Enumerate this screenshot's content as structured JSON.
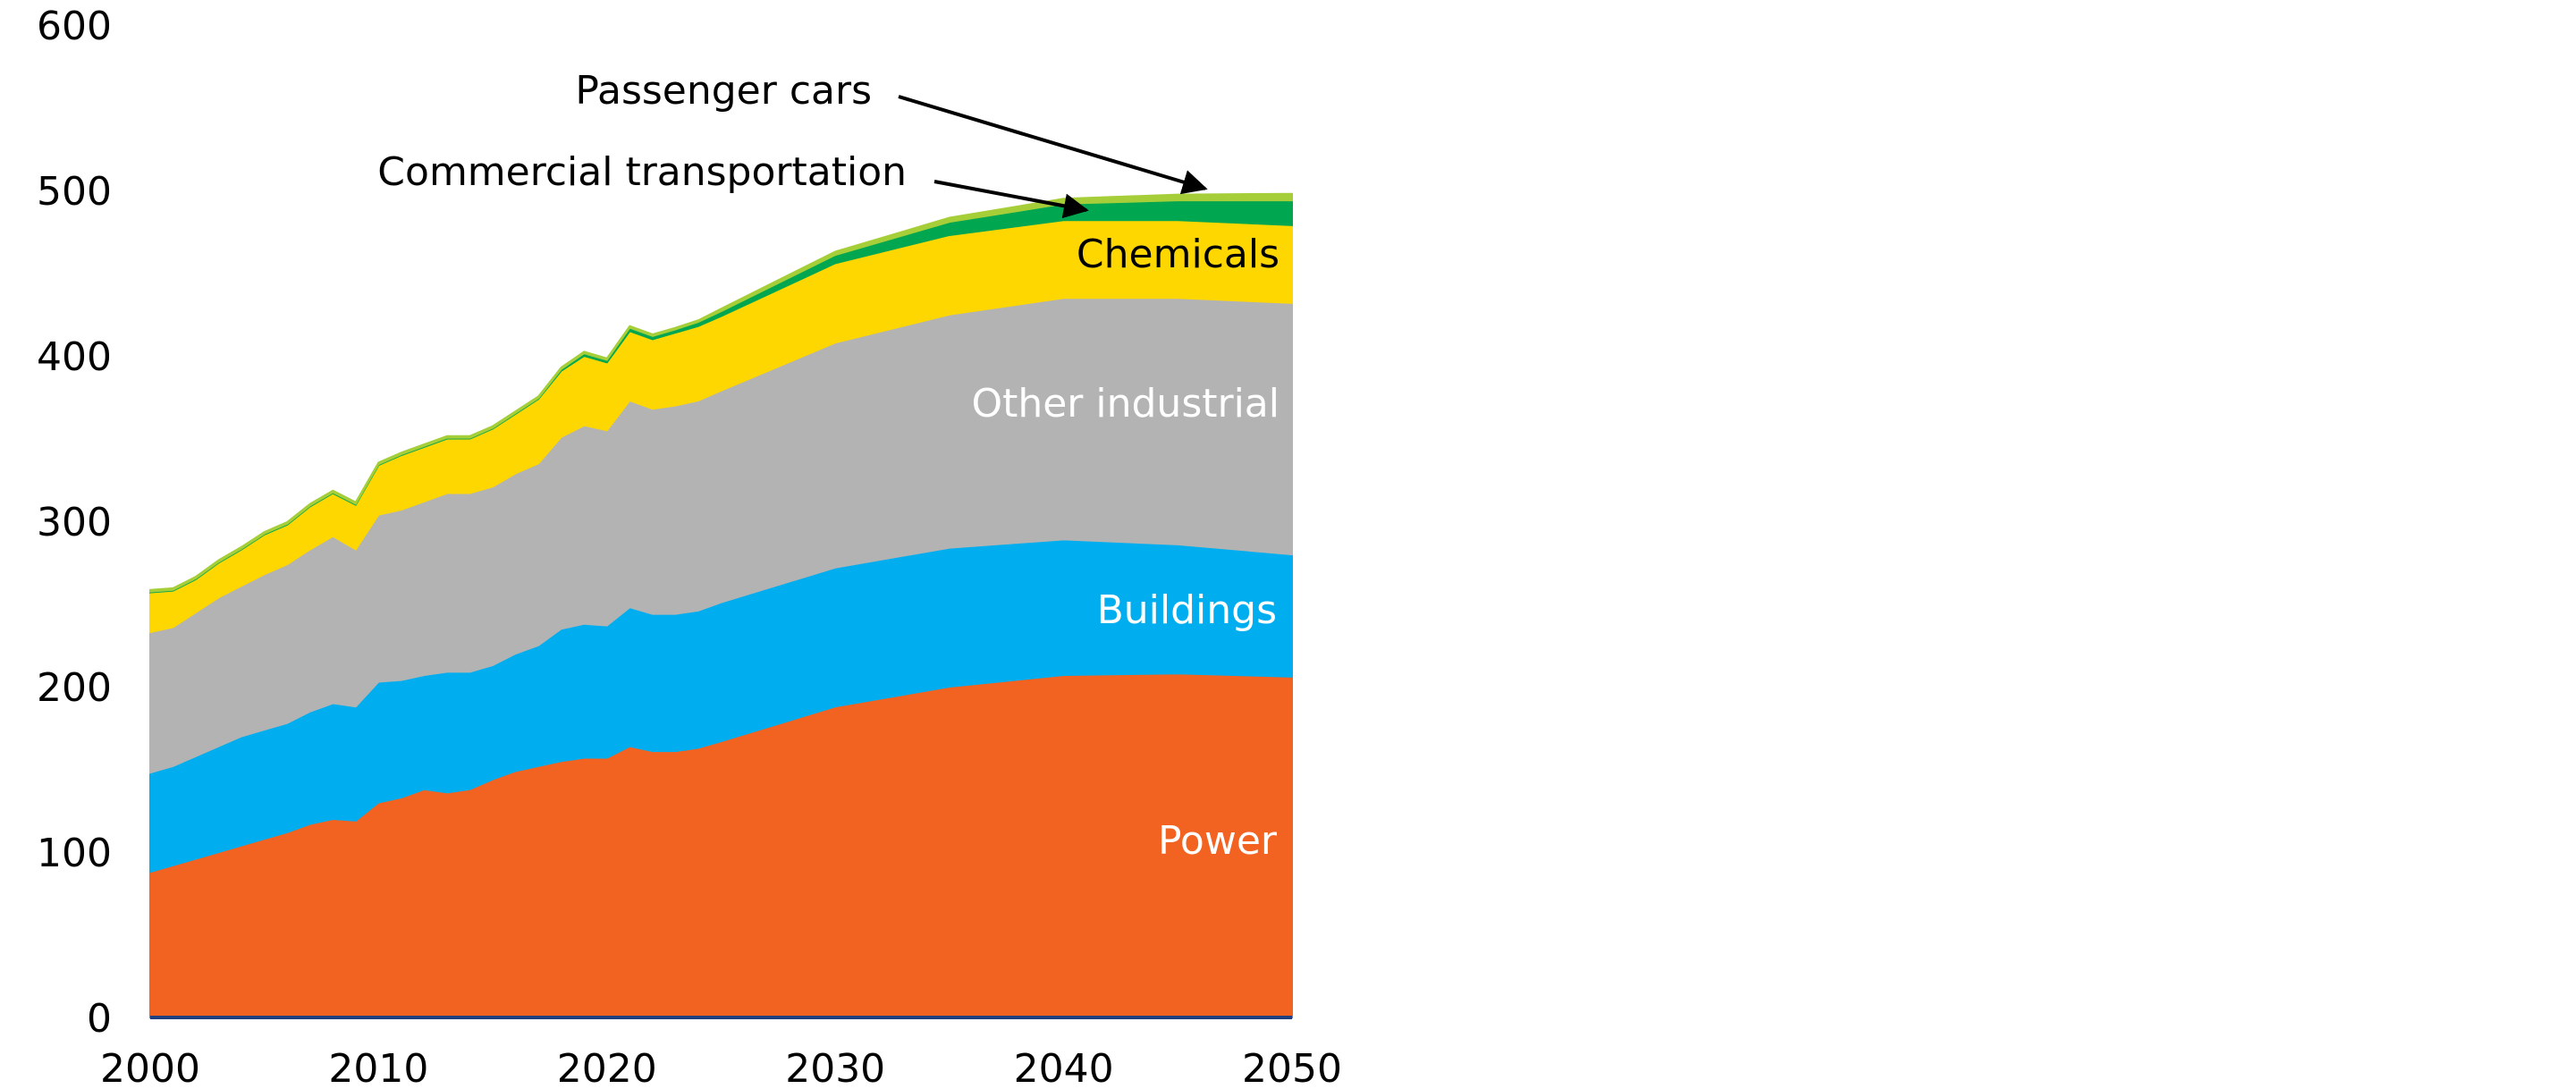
{
  "chart_data": {
    "type": "area",
    "stacked": true,
    "title": "",
    "xlabel": "",
    "ylabel": "",
    "xlim": [
      2000,
      2050
    ],
    "ylim": [
      0,
      600
    ],
    "x_ticks": [
      "2000",
      "2010",
      "2020",
      "2030",
      "2040",
      "2050"
    ],
    "y_ticks": [
      "0",
      "100",
      "200",
      "300",
      "400",
      "500",
      "600"
    ],
    "grid": false,
    "legend": "none (direct labels)",
    "x": [
      2000,
      2001,
      2002,
      2003,
      2004,
      2005,
      2006,
      2007,
      2008,
      2009,
      2010,
      2011,
      2012,
      2013,
      2014,
      2015,
      2016,
      2017,
      2018,
      2019,
      2020,
      2021,
      2022,
      2023,
      2024,
      2025,
      2030,
      2035,
      2040,
      2045,
      2050
    ],
    "series": [
      {
        "name": "Power",
        "color": "#f26322",
        "label_color": "#ffffff",
        "values": [
          88,
          92,
          96,
          100,
          104,
          108,
          112,
          117,
          120,
          119,
          130,
          133,
          138,
          136,
          138,
          144,
          149,
          152,
          155,
          157,
          157,
          164,
          161,
          161,
          163,
          167,
          188,
          200,
          207,
          208,
          206
        ]
      },
      {
        "name": "Buildings",
        "color": "#00aeef",
        "label_color": "#ffffff",
        "values": [
          60,
          60,
          62,
          64,
          66,
          66,
          66,
          68,
          70,
          69,
          73,
          71,
          69,
          73,
          71,
          69,
          71,
          73,
          80,
          81,
          80,
          84,
          83,
          83,
          83,
          84,
          84,
          84,
          82,
          78,
          74
        ]
      },
      {
        "name": "Other industrial",
        "color": "#b3b3b3",
        "label_color": "#ffffff",
        "values": [
          85,
          84,
          87,
          90,
          91,
          94,
          96,
          98,
          101,
          95,
          101,
          103,
          105,
          108,
          108,
          108,
          109,
          110,
          116,
          120,
          118,
          125,
          124,
          126,
          127,
          128,
          136,
          141,
          146,
          149,
          152
        ]
      },
      {
        "name": "Chemicals",
        "color": "#ffd700",
        "label_color": "#000000",
        "values": [
          24,
          22,
          20,
          21,
          22,
          24,
          24,
          26,
          26,
          27,
          30,
          33,
          33,
          33,
          33,
          35,
          36,
          39,
          40,
          42,
          41,
          42,
          42,
          44,
          45,
          45,
          48,
          48,
          47,
          47,
          47
        ]
      },
      {
        "name": "Commercial transportation",
        "color": "#00a650",
        "label_color": "#000000",
        "values": [
          0.5,
          0.5,
          0.5,
          0.5,
          0.5,
          0.5,
          0.5,
          0.5,
          0.5,
          0.5,
          0.5,
          0.5,
          0.5,
          0.5,
          0.5,
          0.5,
          0.5,
          0.5,
          1,
          1.5,
          1.5,
          2,
          2,
          2,
          2.5,
          3,
          5,
          8,
          10,
          12,
          15
        ]
      },
      {
        "name": "Passenger cars",
        "color": "#a6ce39",
        "label_color": "#000000",
        "values": [
          1,
          1,
          1,
          1,
          1,
          1,
          1,
          1,
          1,
          1,
          1,
          1,
          1,
          1,
          1,
          1,
          1,
          1,
          1,
          1,
          1,
          1,
          1,
          1,
          1,
          1.5,
          2,
          2.5,
          3,
          3.5,
          4
        ]
      }
    ],
    "baseline_color": "#1f3f7f"
  }
}
